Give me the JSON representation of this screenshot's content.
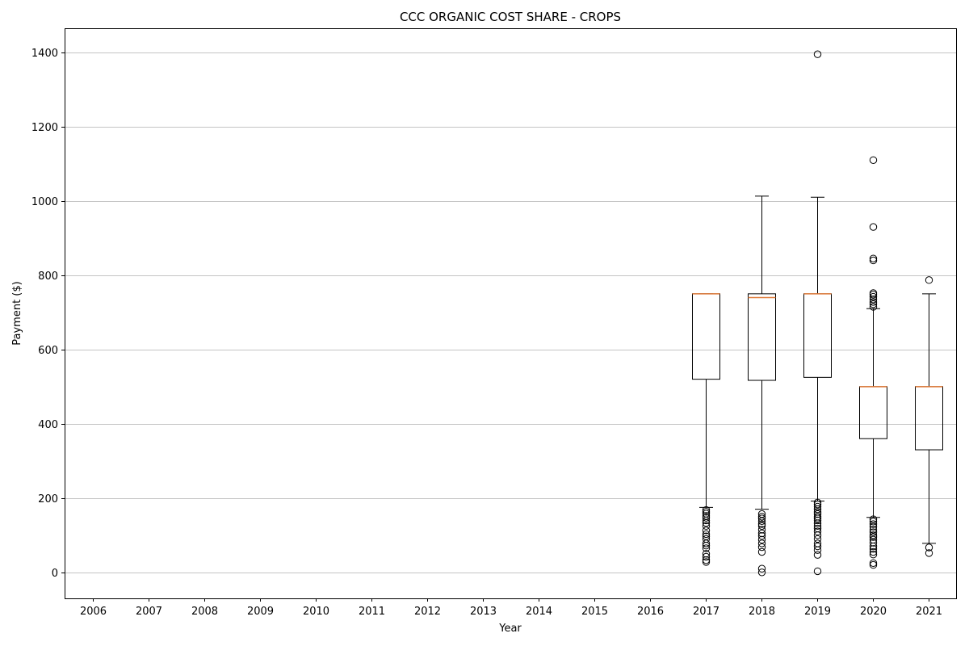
{
  "chart_data": {
    "type": "box",
    "title": "CCC ORGANIC COST SHARE - CROPS",
    "xlabel": "Year",
    "ylabel": "Payment ($)",
    "categories": [
      "2006",
      "2007",
      "2008",
      "2009",
      "2010",
      "2011",
      "2012",
      "2013",
      "2014",
      "2015",
      "2016",
      "2017",
      "2018",
      "2019",
      "2020",
      "2021"
    ],
    "yticks": [
      0,
      200,
      400,
      600,
      800,
      1000,
      1200,
      1400
    ],
    "ylim": [
      -70,
      1465
    ],
    "grid": "horizontal",
    "colors": {
      "box": "#000000",
      "median": "#e07b39",
      "grid": "#b0b0b0"
    },
    "boxes": [
      {
        "category": "2017",
        "whisker_low": 175,
        "q1": 520,
        "median": 750,
        "q3": 750,
        "whisker_high": 750,
        "outliers": [
          28,
          33,
          42,
          50,
          65,
          72,
          78,
          90,
          97,
          103,
          113,
          125,
          133,
          140,
          147,
          152,
          158,
          163,
          168
        ]
      },
      {
        "category": "2018",
        "whisker_low": 170,
        "q1": 517,
        "median": 740,
        "q3": 750,
        "whisker_high": 1013,
        "outliers": [
          0,
          10,
          55,
          68,
          78,
          88,
          98,
          105,
          115,
          125,
          130,
          138,
          145,
          150,
          157
        ]
      },
      {
        "category": "2019",
        "whisker_low": 192,
        "q1": 525,
        "median": 750,
        "q3": 750,
        "whisker_high": 1010,
        "outliers": [
          3,
          47,
          60,
          70,
          78,
          90,
          100,
          110,
          118,
          125,
          132,
          140,
          145,
          150,
          157,
          163,
          170,
          177,
          183,
          188,
          1395
        ]
      },
      {
        "category": "2020",
        "whisker_low": 148,
        "q1": 360,
        "median": 500,
        "q3": 500,
        "whisker_high": 710,
        "outliers": [
          20,
          25,
          48,
          55,
          63,
          70,
          80,
          88,
          95,
          100,
          108,
          115,
          123,
          130,
          137,
          143,
          715,
          722,
          728,
          735,
          742,
          748,
          752,
          840,
          845,
          930,
          1110
        ]
      },
      {
        "category": "2021",
        "whisker_low": 78,
        "q1": 330,
        "median": 500,
        "q3": 500,
        "whisker_high": 750,
        "outliers": [
          52,
          67,
          787
        ]
      }
    ]
  }
}
